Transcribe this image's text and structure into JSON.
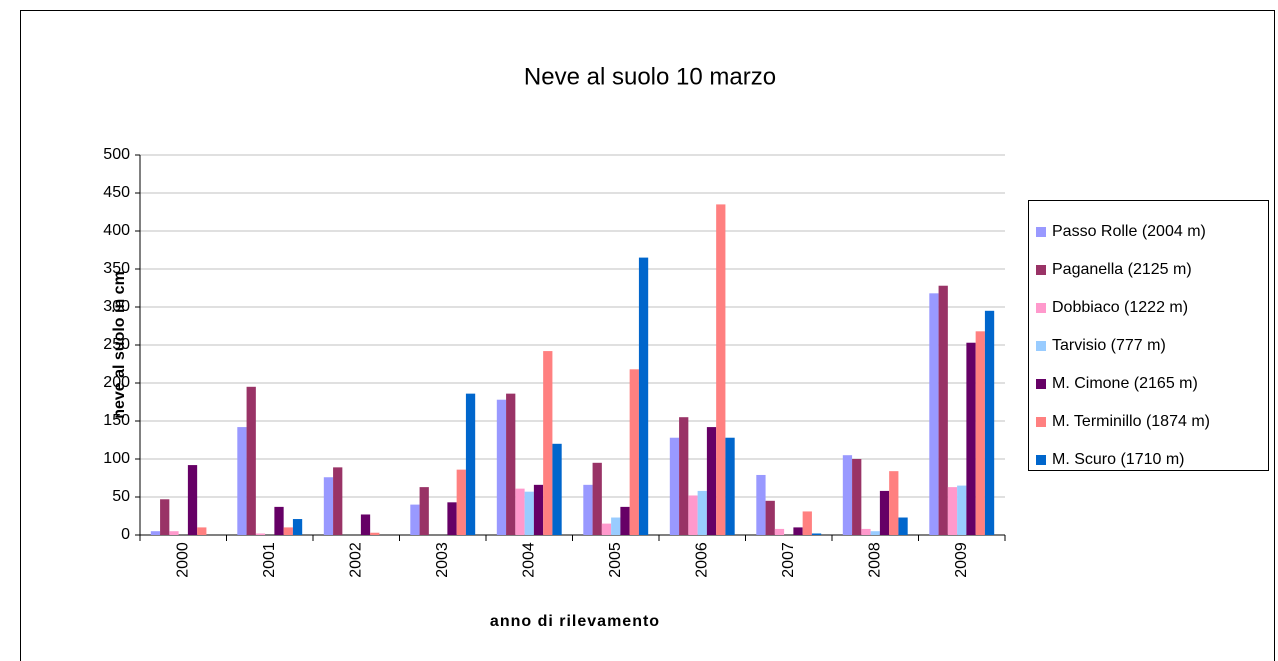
{
  "chart_data": {
    "type": "bar",
    "title": "Neve al suolo 10 marzo",
    "x_label": "anno di rilevamento",
    "y_label": "neve al suolo in cm",
    "categories": [
      "2000",
      "2001",
      "2002",
      "2003",
      "2004",
      "2005",
      "2006",
      "2007",
      "2008",
      "2009"
    ],
    "series": [
      {
        "name": "Passo Rolle (2004 m)",
        "color": "#9999ff",
        "values": [
          5,
          142,
          76,
          40,
          178,
          66,
          128,
          79,
          105,
          318
        ]
      },
      {
        "name": "Paganella (2125 m)",
        "color": "#993366",
        "values": [
          47,
          195,
          89,
          63,
          186,
          95,
          155,
          45,
          100,
          328
        ]
      },
      {
        "name": "Dobbiaco (1222 m)",
        "color": "#ff99cc",
        "values": [
          5,
          2,
          0,
          0,
          61,
          15,
          52,
          8,
          8,
          63
        ]
      },
      {
        "name": "Tarvisio (777 m)",
        "color": "#99ccff",
        "values": [
          0,
          0,
          0,
          0,
          57,
          23,
          58,
          0,
          5,
          65
        ]
      },
      {
        "name": "M. Cimone (2165 m)",
        "color": "#660066",
        "values": [
          92,
          37,
          27,
          43,
          66,
          37,
          142,
          10,
          58,
          253
        ]
      },
      {
        "name": "M. Terminillo (1874 m)",
        "color": "#ff8080",
        "values": [
          10,
          10,
          3,
          86,
          242,
          218,
          435,
          31,
          84,
          268
        ]
      },
      {
        "name": "M. Scuro (1710 m)",
        "color": "#0066cc",
        "values": [
          0,
          21,
          0,
          186,
          120,
          365,
          128,
          2,
          23,
          295
        ]
      }
    ],
    "ylim": [
      0,
      500
    ],
    "yticks": [
      0,
      50,
      100,
      150,
      200,
      250,
      300,
      350,
      400,
      450,
      500
    ],
    "grid": true,
    "legend": "right"
  }
}
